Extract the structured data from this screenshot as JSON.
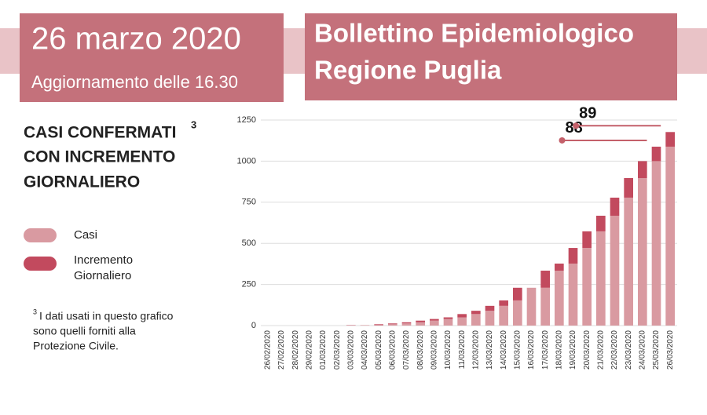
{
  "header": {
    "date": "26 marzo 2020",
    "update": "Aggiornamento delle 16.30",
    "title": [
      "Bollettino Epidemiologico",
      "Regione Puglia"
    ]
  },
  "chart_data": {
    "type": "bar",
    "stacked": true,
    "title": [
      "CASI CONFERMATI",
      "CON INCREMENTO",
      "GIORNALIERO"
    ],
    "title_note_mark": "3",
    "footnote": {
      "mark": "3",
      "lines": [
        "I dati usati in questo grafico",
        "sono quelli forniti alla",
        "Protezione Civile."
      ]
    },
    "categories": [
      "26/02/2020",
      "27/02/2020",
      "28/02/2020",
      "29/02/2020",
      "01/03/2020",
      "02/03/2020",
      "03/03/2020",
      "04/03/2020",
      "05/03/2020",
      "06/03/2020",
      "07/03/2020",
      "08/03/2020",
      "09/03/2020",
      "10/03/2020",
      "11/03/2020",
      "12/03/2020",
      "13/03/2020",
      "14/03/2020",
      "15/03/2020",
      "16/03/2020",
      "17/03/2020",
      "18/03/2020",
      "19/03/2020",
      "20/03/2020",
      "21/03/2020",
      "22/03/2020",
      "23/03/2020",
      "24/03/2020",
      "25/03/2020",
      "26/03/2020"
    ],
    "series": [
      {
        "name": "Casi",
        "color": "#d99aa1",
        "values": [
          0,
          0,
          0,
          0,
          0,
          0,
          1,
          3,
          3,
          8,
          13,
          20,
          30,
          40,
          50,
          70,
          90,
          120,
          153,
          230,
          230,
          334,
          377,
          472,
          573,
          668,
          778,
          897,
          1000,
          1088
        ]
      },
      {
        "name": "Incremento Giornaliero",
        "color": "#c24a5e",
        "values": [
          0,
          0,
          0,
          0,
          0,
          0,
          2,
          0,
          5,
          5,
          7,
          10,
          10,
          10,
          20,
          20,
          30,
          33,
          77,
          0,
          104,
          43,
          95,
          101,
          95,
          110,
          119,
          103,
          88,
          89
        ]
      }
    ],
    "annotations": [
      {
        "text": "88",
        "category": 28
      },
      {
        "text": "89",
        "category": 29
      }
    ],
    "ylim": [
      0,
      1250
    ],
    "yticks": [
      0,
      250,
      500,
      750,
      1000,
      1250
    ],
    "grid": true
  }
}
